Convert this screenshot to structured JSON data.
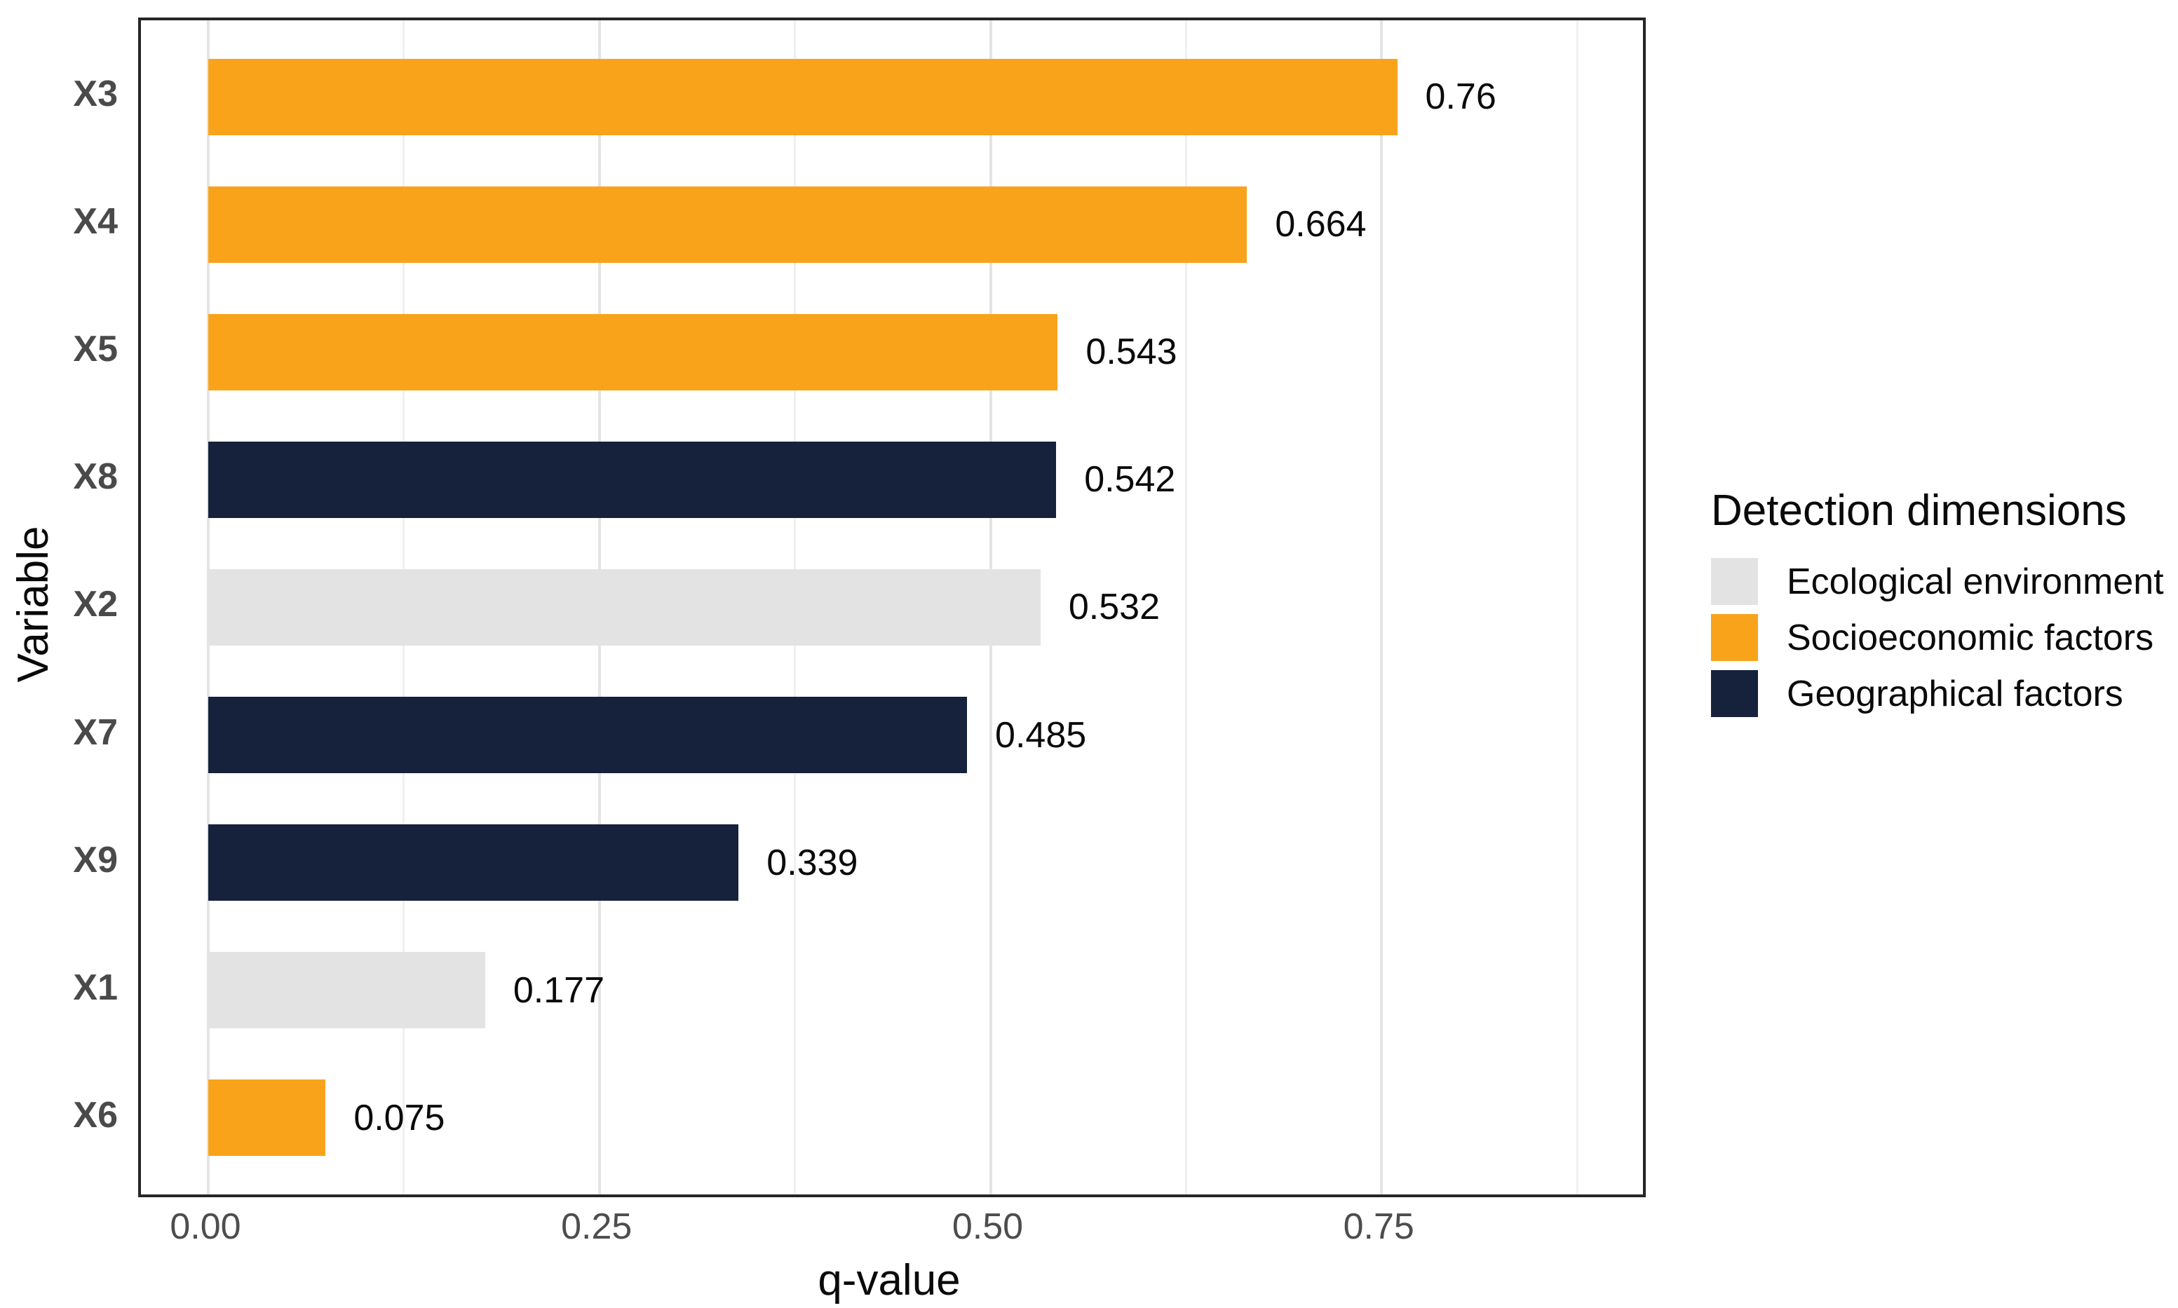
{
  "chart_data": {
    "type": "bar",
    "orientation": "horizontal",
    "xlabel": "q-value",
    "ylabel": "Variable",
    "xlim": [
      0,
      0.917
    ],
    "grid": true,
    "x_ticks": [
      0.0,
      0.25,
      0.5,
      0.75
    ],
    "x_tick_labels": [
      "0.00",
      "0.25",
      "0.50",
      "0.75"
    ],
    "x_minor_ticks": [
      0.125,
      0.375,
      0.625,
      0.875
    ],
    "categories": [
      "X3",
      "X4",
      "X5",
      "X8",
      "X2",
      "X7",
      "X9",
      "X1",
      "X6"
    ],
    "values": [
      0.76,
      0.664,
      0.543,
      0.542,
      0.532,
      0.485,
      0.339,
      0.177,
      0.075
    ],
    "value_labels": [
      "0.76",
      "0.664",
      "0.543",
      "0.542",
      "0.532",
      "0.485",
      "0.339",
      "0.177",
      "0.075"
    ],
    "bar_groups": [
      "Socioeconomic factors",
      "Socioeconomic factors",
      "Socioeconomic factors",
      "Geographical factors",
      "Ecological environment",
      "Geographical factors",
      "Geographical factors",
      "Ecological environment",
      "Socioeconomic factors"
    ],
    "legend": {
      "title": "Detection dimensions",
      "position": "right",
      "entries": [
        {
          "label": "Ecological environment",
          "color": "#E3E3E3"
        },
        {
          "label": "Socioeconomic factors",
          "color": "#F9A31B"
        },
        {
          "label": "Geographical factors",
          "color": "#16223C"
        }
      ]
    },
    "colors": {
      "Ecological environment": "#E3E3E3",
      "Socioeconomic factors": "#F9A31B",
      "Geographical factors": "#16223C"
    },
    "style": {
      "panel_border": "#262626",
      "grid_major": "#E4E4E4",
      "grid_minor": "#F0F0F0",
      "tick_text": "#4D4D4D",
      "category_text": "#4A4A4A",
      "value_text": "#0A0A0A"
    }
  }
}
